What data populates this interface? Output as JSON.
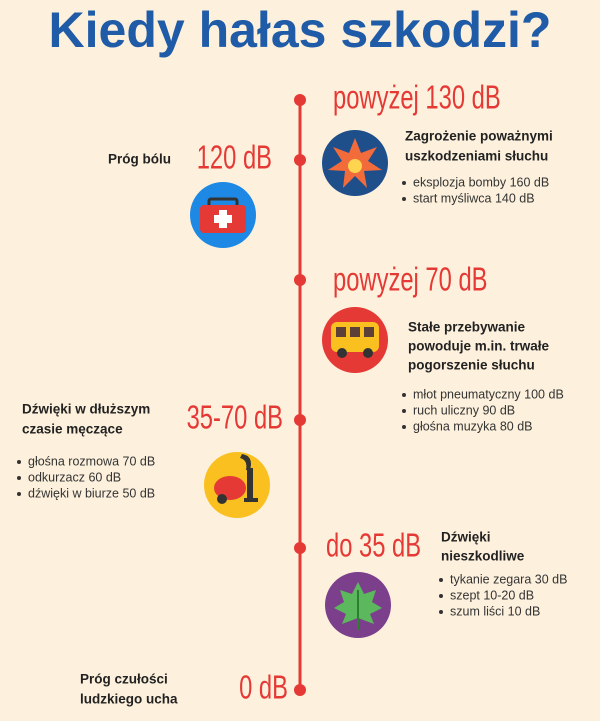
{
  "title": "Kiedy hałas szkodzi?",
  "levels": [
    {
      "level": "powyżej 130 dB",
      "heading": [
        "Zagrożenie poważnymi",
        "uszkodzeniami słuchu"
      ],
      "items": [
        "eksplozja bomby 160 dB",
        "start myśliwca 140 dB"
      ]
    },
    {
      "level": "120 dB",
      "heading": [
        "Próg bólu"
      ]
    },
    {
      "level": "powyżej 70 dB",
      "heading": [
        "Stałe przebywanie",
        "powoduje m.in. trwałe",
        "pogorszenie słuchu"
      ],
      "items": [
        "młot pneumatyczny 100 dB",
        "ruch uliczny 90 dB",
        "głośna muzyka 80 dB"
      ]
    },
    {
      "level": "35-70 dB",
      "heading": [
        "Dźwięki w dłuższym",
        "czasie męczące"
      ],
      "items": [
        "głośna rozmowa 70 dB",
        "odkurzacz 60 dB",
        "dźwięki w biurze 50 dB"
      ]
    },
    {
      "level": "do 35 dB",
      "heading": [
        "Dźwięki",
        "nieszkodliwe"
      ],
      "items": [
        "tykanie zegara 30 dB",
        "szept 10-20 dB",
        "szum liści 10 dB"
      ]
    },
    {
      "level": "0 dB",
      "heading": [
        "Próg czułości",
        "ludzkiego ucha"
      ]
    }
  ]
}
